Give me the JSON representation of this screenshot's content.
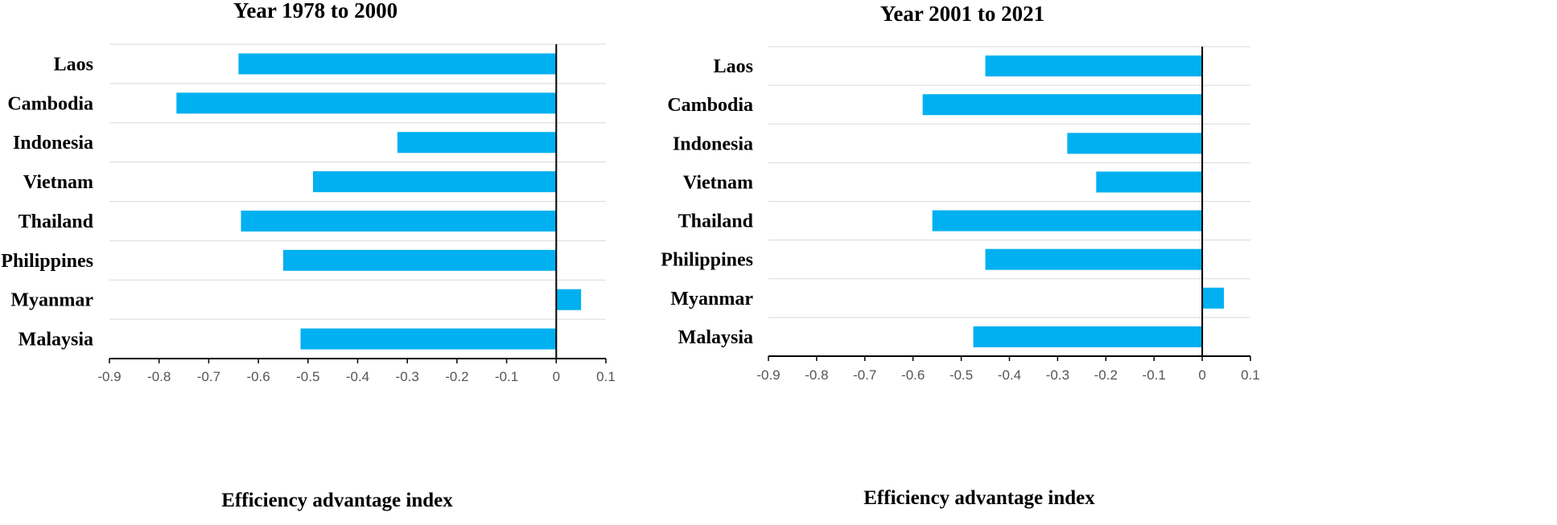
{
  "chart_data": [
    {
      "type": "bar",
      "orientation": "horizontal",
      "title": "Year 1978 to 2000",
      "xlabel": "Efficiency advantage index",
      "categories": [
        "Laos",
        "Cambodia",
        "Indonesia",
        "Vietnam",
        "Thailand",
        "Philippines",
        "Myanmar",
        "Malaysia"
      ],
      "values": [
        -0.64,
        -0.765,
        -0.32,
        -0.49,
        -0.635,
        -0.55,
        0.05,
        -0.515
      ],
      "xlim": [
        -0.9,
        0.1
      ],
      "xticks": [
        "-0.9",
        "-0.8",
        "-0.7",
        "-0.6",
        "-0.5",
        "-0.4",
        "-0.3",
        "-0.2",
        "-0.1",
        "0",
        "0.1"
      ],
      "grid": true,
      "bar_color": "#00b0f0"
    },
    {
      "type": "bar",
      "orientation": "horizontal",
      "title": "Year 2001 to 2021",
      "xlabel": "Efficiency advantage index",
      "categories": [
        "Laos",
        "Cambodia",
        "Indonesia",
        "Vietnam",
        "Thailand",
        "Philippines",
        "Myanmar",
        "Malaysia"
      ],
      "values": [
        -0.45,
        -0.58,
        -0.28,
        -0.22,
        -0.56,
        -0.45,
        0.045,
        -0.475
      ],
      "xlim": [
        -0.9,
        0.1
      ],
      "xticks": [
        "-0.9",
        "-0.8",
        "-0.7",
        "-0.6",
        "-0.5",
        "-0.4",
        "-0.3",
        "-0.2",
        "-0.1",
        "0",
        "0.1"
      ],
      "grid": true,
      "bar_color": "#00b0f0"
    }
  ]
}
